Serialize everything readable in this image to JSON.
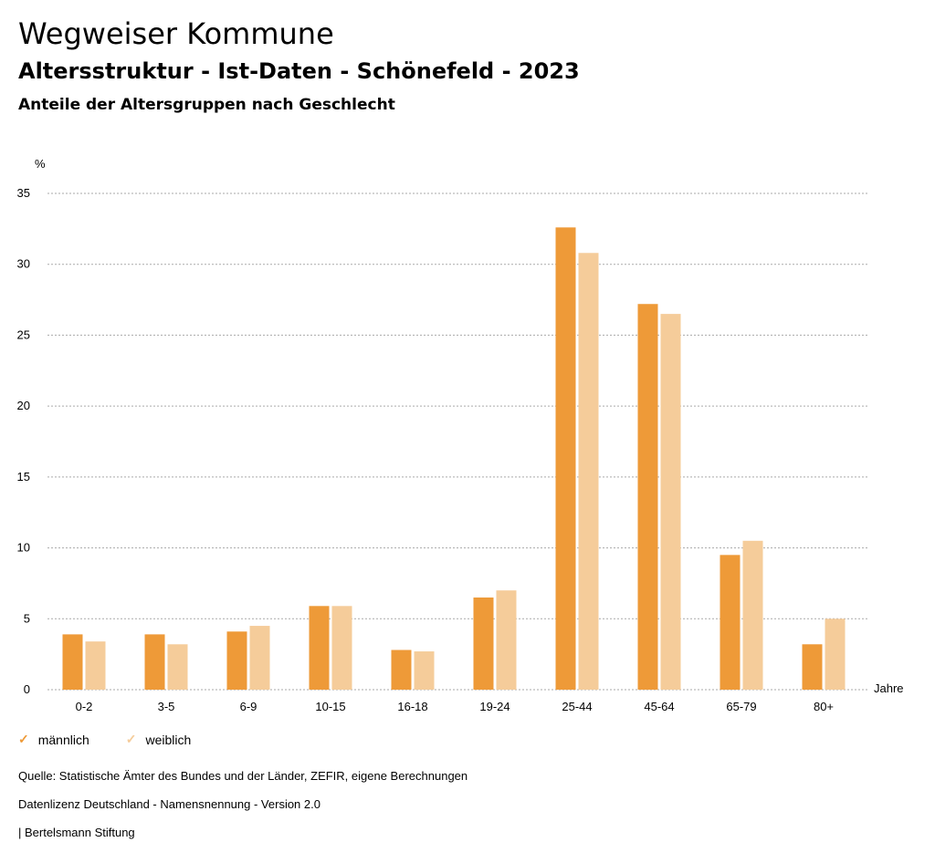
{
  "header": {
    "title": "Wegweiser Kommune",
    "subtitle": "Altersstruktur - Ist-Daten - Schönefeld - 2023",
    "subsubtitle": "Anteile der Altersgruppen nach Geschlecht"
  },
  "chart_data": {
    "type": "bar",
    "ylabel": "%",
    "xlabel": "Jahre",
    "ylim": [
      0,
      35
    ],
    "yticks": [
      0,
      5,
      10,
      15,
      20,
      25,
      30,
      35
    ],
    "categories": [
      "0-2",
      "3-5",
      "6-9",
      "10-15",
      "16-18",
      "19-24",
      "25-44",
      "45-64",
      "65-79",
      "80+"
    ],
    "series": [
      {
        "name": "männlich",
        "color": "#ee9a38",
        "values": [
          3.9,
          3.9,
          4.1,
          5.9,
          2.8,
          6.5,
          32.6,
          27.2,
          9.5,
          3.2
        ]
      },
      {
        "name": "weiblich",
        "color": "#f5cc9a",
        "values": [
          3.4,
          3.2,
          4.5,
          5.9,
          2.7,
          7.0,
          30.8,
          26.5,
          10.5,
          5.0
        ]
      }
    ],
    "grid": true,
    "legend": "bottom-left"
  },
  "legend": {
    "male_label": "männlich",
    "female_label": "weiblich"
  },
  "footer": {
    "source": "Quelle: Statistische Ämter des Bundes und der Länder, ZEFIR, eigene Berechnungen",
    "license": "Datenlizenz Deutschland - Namensnennung - Version 2.0",
    "publisher": "| Bertelsmann Stiftung"
  }
}
